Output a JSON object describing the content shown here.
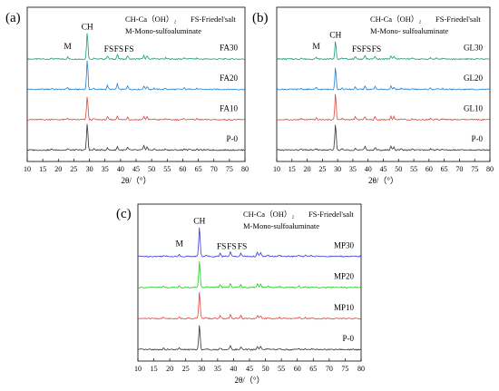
{
  "chart_data": [
    {
      "type": "line",
      "panel_label": "(a)",
      "xlabel": "2θ/（°）",
      "xlim": [
        10,
        80
      ],
      "xticks": [
        10,
        15,
        20,
        25,
        30,
        35,
        40,
        45,
        50,
        55,
        60,
        65,
        70,
        75,
        80
      ],
      "legend_lines": [
        "CH-Ca（OH）₂",
        "FS-Friedel'salt",
        "M-Mono-sulfoaluminate"
      ],
      "peak_labels": [
        {
          "text": "M",
          "x": 23.0,
          "series": "FA30"
        },
        {
          "text": "CH",
          "x": 29.3,
          "series": "FA30"
        },
        {
          "text": "FS",
          "x": 35.8,
          "series": "FA30"
        },
        {
          "text": "FS",
          "x": 39.0,
          "series": "FA30"
        },
        {
          "text": "FS",
          "x": 42.3,
          "series": "FA30"
        }
      ],
      "series": [
        {
          "name": "FA30",
          "color": "#1a9a7a",
          "peaks": [
            [
              18.0,
              0.8
            ],
            [
              23.0,
              1.5
            ],
            [
              29.3,
              20
            ],
            [
              31.5,
              0.8
            ],
            [
              35.8,
              2.5
            ],
            [
              39.0,
              3.5
            ],
            [
              42.3,
              2.5
            ],
            [
              47.5,
              2.5
            ],
            [
              48.5,
              2.2
            ],
            [
              50.8,
              0.8
            ],
            [
              54.5,
              0.8
            ],
            [
              60.5,
              1.0
            ],
            [
              62.5,
              0.8
            ],
            [
              64.5,
              0.6
            ]
          ]
        },
        {
          "name": "FA20",
          "color": "#1f7fd0",
          "peaks": [
            [
              18.0,
              0.8
            ],
            [
              23.0,
              1.5
            ],
            [
              29.3,
              22
            ],
            [
              31.5,
              0.8
            ],
            [
              35.8,
              3.0
            ],
            [
              39.0,
              4.0
            ],
            [
              42.3,
              3.0
            ],
            [
              47.5,
              2.5
            ],
            [
              48.5,
              2.2
            ],
            [
              50.8,
              0.8
            ],
            [
              54.5,
              0.8
            ],
            [
              60.5,
              1.0
            ],
            [
              62.5,
              0.8
            ],
            [
              64.5,
              0.6
            ]
          ]
        },
        {
          "name": "FA10",
          "color": "#e0443a",
          "peaks": [
            [
              18.0,
              0.8
            ],
            [
              23.0,
              1.2
            ],
            [
              29.3,
              18
            ],
            [
              31.5,
              0.8
            ],
            [
              35.8,
              2.0
            ],
            [
              39.0,
              3.0
            ],
            [
              42.3,
              2.2
            ],
            [
              47.5,
              2.5
            ],
            [
              48.5,
              2.2
            ],
            [
              50.8,
              0.8
            ],
            [
              54.5,
              0.8
            ],
            [
              60.5,
              1.0
            ],
            [
              62.5,
              0.8
            ],
            [
              64.5,
              0.6
            ]
          ]
        },
        {
          "name": "P-0",
          "color": "#333333",
          "peaks": [
            [
              18.0,
              0.8
            ],
            [
              23.0,
              1.0
            ],
            [
              29.3,
              20
            ],
            [
              31.5,
              0.8
            ],
            [
              35.8,
              1.5
            ],
            [
              39.0,
              2.5
            ],
            [
              42.3,
              1.8
            ],
            [
              47.5,
              3.0
            ],
            [
              48.5,
              2.5
            ],
            [
              50.8,
              0.8
            ],
            [
              54.5,
              0.8
            ],
            [
              60.5,
              1.0
            ],
            [
              62.5,
              0.8
            ],
            [
              64.5,
              0.6
            ]
          ]
        }
      ]
    },
    {
      "type": "line",
      "panel_label": "(b)",
      "xlabel": "2θ/（°）",
      "xlim": [
        10,
        80
      ],
      "xticks": [
        10,
        15,
        20,
        25,
        30,
        35,
        40,
        45,
        50,
        55,
        60,
        65,
        70,
        75,
        80
      ],
      "legend_lines": [
        "CH-Ca（OH）₂",
        "FS-Friedel'salt",
        "M-Mono- sulfoaluminate"
      ],
      "peak_labels": [
        {
          "text": "M",
          "x": 23.0,
          "series": "GL30"
        },
        {
          "text": "CH",
          "x": 29.3,
          "series": "GL30"
        },
        {
          "text": "FS",
          "x": 35.8,
          "series": "GL30"
        },
        {
          "text": "FS",
          "x": 39.0,
          "series": "GL30"
        },
        {
          "text": "FS",
          "x": 42.3,
          "series": "GL30"
        }
      ],
      "series": [
        {
          "name": "GL30",
          "color": "#1a9a7a",
          "peaks": [
            [
              18.0,
              0.8
            ],
            [
              23.0,
              1.2
            ],
            [
              29.3,
              14
            ],
            [
              31.5,
              0.8
            ],
            [
              35.8,
              2.0
            ],
            [
              39.0,
              2.5
            ],
            [
              42.3,
              2.0
            ],
            [
              47.5,
              2.2
            ],
            [
              48.5,
              2.0
            ],
            [
              50.8,
              0.8
            ],
            [
              54.5,
              0.8
            ],
            [
              60.5,
              0.9
            ],
            [
              62.5,
              0.7
            ],
            [
              64.5,
              0.6
            ]
          ]
        },
        {
          "name": "GL20",
          "color": "#1f7fd0",
          "peaks": [
            [
              18.0,
              0.8
            ],
            [
              23.0,
              1.2
            ],
            [
              29.3,
              17
            ],
            [
              31.5,
              0.8
            ],
            [
              35.8,
              2.0
            ],
            [
              39.0,
              2.5
            ],
            [
              42.3,
              2.0
            ],
            [
              47.5,
              2.2
            ],
            [
              48.5,
              2.0
            ],
            [
              50.8,
              0.8
            ],
            [
              54.5,
              0.8
            ],
            [
              60.5,
              0.9
            ],
            [
              62.5,
              0.7
            ],
            [
              64.5,
              0.6
            ]
          ]
        },
        {
          "name": "GL10",
          "color": "#e0443a",
          "peaks": [
            [
              18.0,
              0.8
            ],
            [
              23.0,
              1.2
            ],
            [
              29.3,
              20
            ],
            [
              31.5,
              0.8
            ],
            [
              35.8,
              2.0
            ],
            [
              39.0,
              2.5
            ],
            [
              42.3,
              2.0
            ],
            [
              47.5,
              2.5
            ],
            [
              48.5,
              2.2
            ],
            [
              50.8,
              0.8
            ],
            [
              54.5,
              0.8
            ],
            [
              60.5,
              0.9
            ],
            [
              62.5,
              0.7
            ],
            [
              64.5,
              0.6
            ]
          ]
        },
        {
          "name": "P-0",
          "color": "#333333",
          "peaks": [
            [
              18.0,
              0.8
            ],
            [
              23.0,
              1.0
            ],
            [
              29.3,
              20
            ],
            [
              31.5,
              0.8
            ],
            [
              35.8,
              1.5
            ],
            [
              39.0,
              2.5
            ],
            [
              42.3,
              1.8
            ],
            [
              47.5,
              3.0
            ],
            [
              48.5,
              2.5
            ],
            [
              50.8,
              0.8
            ],
            [
              54.5,
              0.8
            ],
            [
              60.5,
              0.9
            ],
            [
              62.5,
              0.7
            ],
            [
              64.5,
              0.6
            ]
          ]
        }
      ]
    },
    {
      "type": "line",
      "panel_label": "(c)",
      "xlabel": "2θ/（°）",
      "xlim": [
        10,
        80
      ],
      "xticks": [
        10,
        15,
        20,
        25,
        30,
        35,
        40,
        45,
        50,
        55,
        60,
        65,
        70,
        75,
        80
      ],
      "legend_lines": [
        "CH-Ca（OH）₂",
        "FS-Friedel'salt",
        "M-Mono-sulfoaluminate"
      ],
      "peak_labels": [
        {
          "text": "M",
          "x": 23.0,
          "series": "MP30"
        },
        {
          "text": "CH",
          "x": 29.3,
          "series": "MP30"
        },
        {
          "text": "FS",
          "x": 35.8,
          "series": "MP30"
        },
        {
          "text": "FS",
          "x": 39.0,
          "series": "MP30"
        },
        {
          "text": "FS",
          "x": 42.3,
          "series": "MP30"
        }
      ],
      "series": [
        {
          "name": "MP30",
          "color": "#3a3ad8",
          "peaks": [
            [
              18.0,
              0.8
            ],
            [
              23.0,
              1.2
            ],
            [
              29.3,
              22
            ],
            [
              31.5,
              0.8
            ],
            [
              35.8,
              2.5
            ],
            [
              39.0,
              3.0
            ],
            [
              42.3,
              2.5
            ],
            [
              47.5,
              3.0
            ],
            [
              48.5,
              2.5
            ],
            [
              50.8,
              0.8
            ],
            [
              54.5,
              0.8
            ],
            [
              60.5,
              0.9
            ],
            [
              62.5,
              0.7
            ],
            [
              64.5,
              0.6
            ]
          ]
        },
        {
          "name": "MP20",
          "color": "#22cc22",
          "peaks": [
            [
              18.0,
              0.8
            ],
            [
              23.0,
              1.2
            ],
            [
              29.3,
              20
            ],
            [
              31.5,
              0.8
            ],
            [
              35.8,
              2.5
            ],
            [
              39.0,
              3.0
            ],
            [
              42.3,
              2.5
            ],
            [
              47.5,
              2.5
            ],
            [
              48.5,
              2.2
            ],
            [
              50.8,
              0.8
            ],
            [
              54.5,
              0.8
            ],
            [
              60.5,
              0.9
            ],
            [
              62.5,
              0.7
            ],
            [
              64.5,
              0.6
            ]
          ]
        },
        {
          "name": "MP10",
          "color": "#e0443a",
          "peaks": [
            [
              18.0,
              0.8
            ],
            [
              23.0,
              1.2
            ],
            [
              29.3,
              20
            ],
            [
              31.5,
              0.8
            ],
            [
              35.8,
              2.2
            ],
            [
              39.0,
              2.8
            ],
            [
              42.3,
              2.2
            ],
            [
              47.5,
              2.5
            ],
            [
              48.5,
              2.2
            ],
            [
              50.8,
              0.8
            ],
            [
              54.5,
              0.8
            ],
            [
              60.5,
              0.9
            ],
            [
              62.5,
              0.7
            ],
            [
              64.5,
              0.6
            ]
          ]
        },
        {
          "name": "P-0",
          "color": "#333333",
          "peaks": [
            [
              18.0,
              0.8
            ],
            [
              23.0,
              1.0
            ],
            [
              29.3,
              18
            ],
            [
              31.5,
              0.8
            ],
            [
              35.8,
              1.5
            ],
            [
              39.0,
              2.5
            ],
            [
              42.3,
              1.8
            ],
            [
              47.5,
              2.5
            ],
            [
              48.5,
              2.2
            ],
            [
              50.8,
              0.8
            ],
            [
              54.5,
              0.8
            ],
            [
              60.5,
              0.9
            ],
            [
              62.5,
              0.7
            ],
            [
              64.5,
              0.6
            ]
          ]
        }
      ]
    }
  ]
}
